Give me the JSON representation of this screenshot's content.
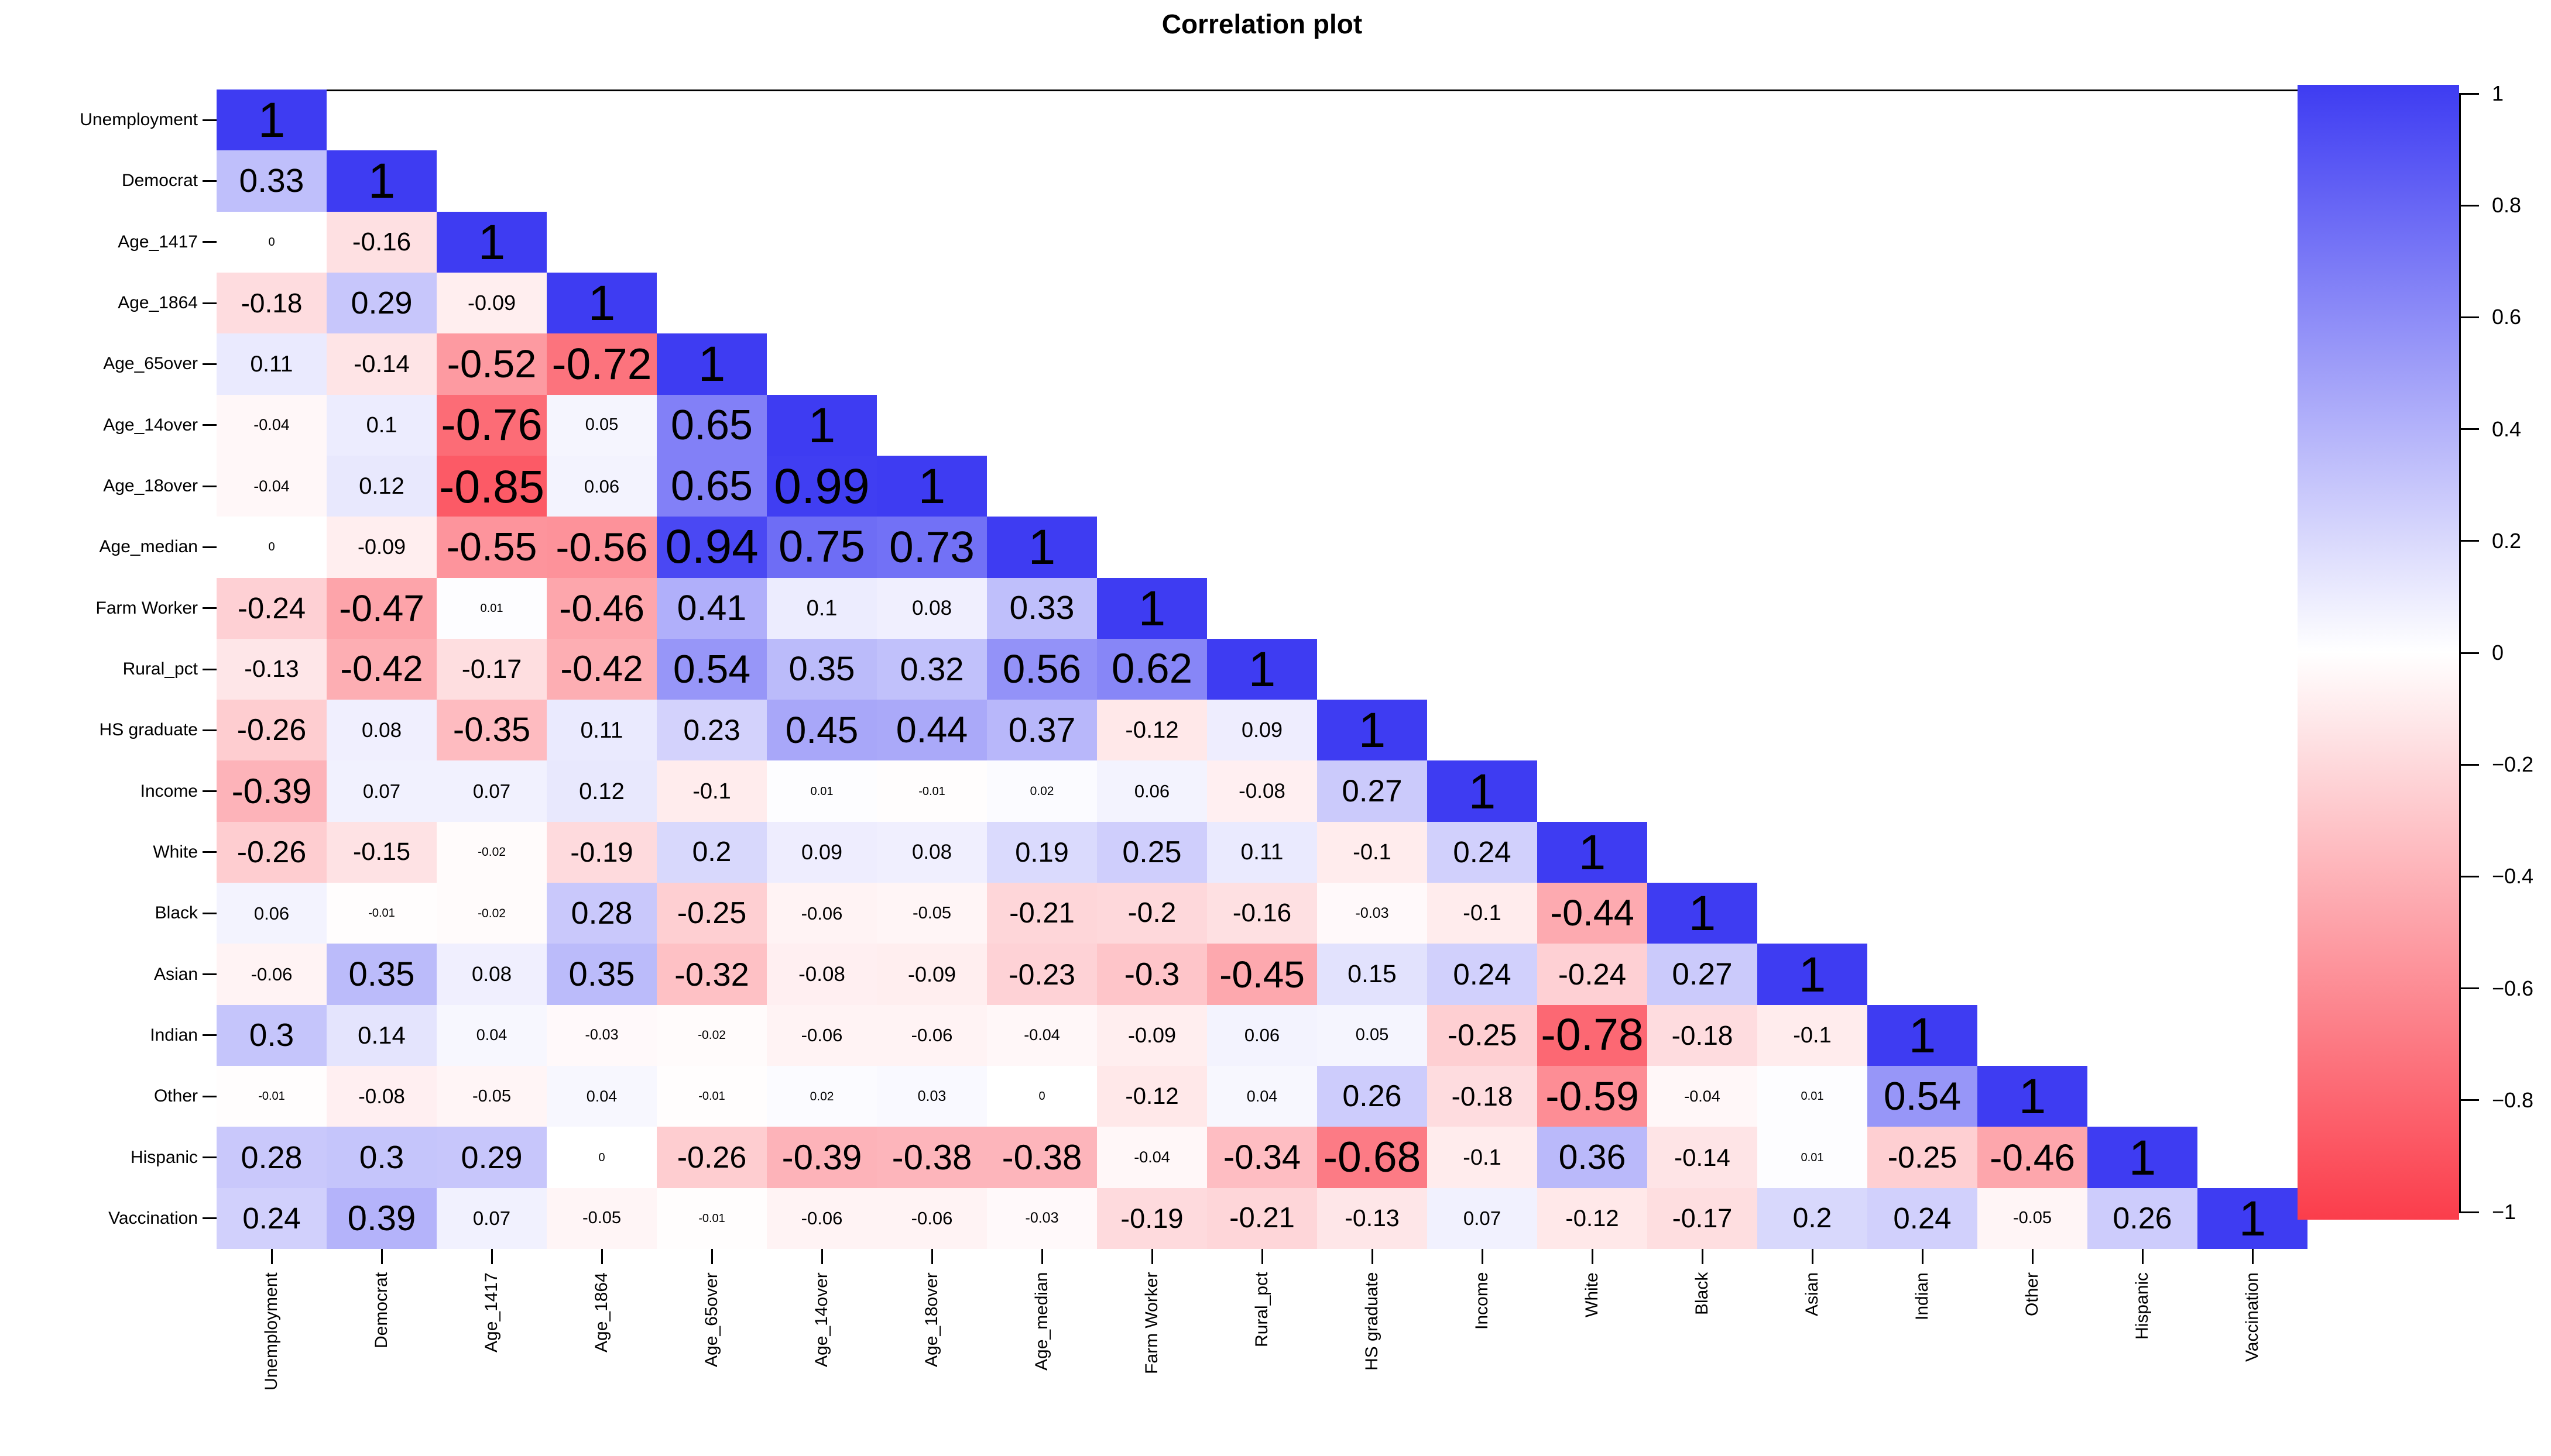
{
  "title": "Correlation plot",
  "chart_data": {
    "type": "heatmap",
    "subtype": "correlation-matrix-lower-triangle",
    "title": "Correlation plot",
    "categories": [
      "Unemployment",
      "Democrat",
      "Age_1417",
      "Age_1864",
      "Age_65over",
      "Age_14over",
      "Age_18over",
      "Age_median",
      "Farm Worker",
      "Rural_pct",
      "HS graduate",
      "Income",
      "White",
      "Black",
      "Asian",
      "Indian",
      "Other",
      "Hispanic",
      "Vaccination"
    ],
    "matrix_lower_triangle": [
      [
        1
      ],
      [
        0.33,
        1
      ],
      [
        0,
        -0.16,
        1
      ],
      [
        -0.18,
        0.29,
        -0.09,
        1
      ],
      [
        0.11,
        -0.14,
        -0.52,
        -0.72,
        1
      ],
      [
        -0.04,
        0.1,
        -0.76,
        0.05,
        0.65,
        1
      ],
      [
        -0.04,
        0.12,
        -0.85,
        0.06,
        0.65,
        0.99,
        1
      ],
      [
        0,
        -0.09,
        -0.55,
        -0.56,
        0.94,
        0.75,
        0.73,
        1
      ],
      [
        -0.24,
        -0.47,
        0.01,
        -0.46,
        0.41,
        0.1,
        0.08,
        0.33,
        1
      ],
      [
        -0.13,
        -0.42,
        -0.17,
        -0.42,
        0.54,
        0.35,
        0.32,
        0.56,
        0.62,
        1
      ],
      [
        -0.26,
        0.08,
        -0.35,
        0.11,
        0.23,
        0.45,
        0.44,
        0.37,
        -0.12,
        0.09,
        1
      ],
      [
        -0.39,
        0.07,
        0.07,
        0.12,
        -0.1,
        0.01,
        -0.01,
        0.02,
        0.06,
        -0.08,
        0.27,
        1
      ],
      [
        -0.26,
        -0.15,
        -0.02,
        -0.19,
        0.2,
        0.09,
        0.08,
        0.19,
        0.25,
        0.11,
        -0.1,
        0.24,
        1
      ],
      [
        0.06,
        -0.01,
        -0.02,
        0.28,
        -0.25,
        -0.06,
        -0.05,
        -0.21,
        -0.2,
        -0.16,
        -0.03,
        -0.1,
        -0.44,
        1
      ],
      [
        -0.06,
        0.35,
        0.08,
        0.35,
        -0.32,
        -0.08,
        -0.09,
        -0.23,
        -0.3,
        -0.45,
        0.15,
        0.24,
        -0.24,
        0.27,
        1
      ],
      [
        0.3,
        0.14,
        0.04,
        -0.03,
        -0.02,
        -0.06,
        -0.06,
        -0.04,
        -0.09,
        0.06,
        0.05,
        -0.25,
        -0.78,
        -0.18,
        -0.1,
        1
      ],
      [
        -0.01,
        -0.08,
        -0.05,
        0.04,
        -0.01,
        0.02,
        0.03,
        0,
        -0.12,
        0.04,
        0.26,
        -0.18,
        -0.59,
        -0.04,
        0.01,
        0.54,
        1
      ],
      [
        0.28,
        0.3,
        0.29,
        0,
        -0.26,
        -0.39,
        -0.38,
        -0.38,
        -0.04,
        -0.34,
        -0.68,
        -0.1,
        0.36,
        -0.14,
        0.01,
        -0.25,
        -0.46,
        1
      ],
      [
        0.24,
        0.39,
        0.07,
        -0.05,
        -0.01,
        -0.06,
        -0.06,
        -0.03,
        -0.19,
        -0.21,
        -0.13,
        0.07,
        -0.12,
        -0.17,
        0.2,
        0.24,
        -0.05,
        0.26,
        1
      ]
    ],
    "colorbar": {
      "min": -1,
      "max": 1,
      "tick_labels": [
        "1",
        "0.8",
        "0.6",
        "0.4",
        "0.2",
        "0",
        "−0.2",
        "−0.4",
        "−0.6",
        "−0.8",
        "−1"
      ],
      "tick_values": [
        1,
        0.8,
        0.6,
        0.4,
        0.2,
        0,
        -0.2,
        -0.4,
        -0.6,
        -0.8,
        -1
      ],
      "position": "right"
    },
    "colors": {
      "positive_max": "#3e3cf2",
      "zero": "#ffffff",
      "negative_max": "#fb3d4b",
      "cell_text": "#000000"
    },
    "layout_hints": {
      "grid": false,
      "upper_triangle": "blank",
      "value_labels": "font size scales with |r|"
    }
  }
}
